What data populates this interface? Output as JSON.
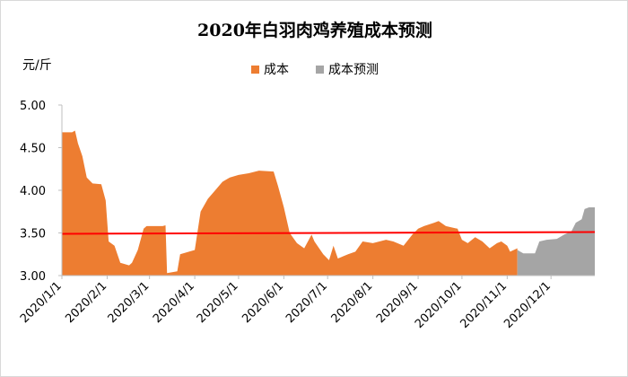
{
  "chart_data": {
    "type": "area",
    "title": "2020年白羽肉鸡养殖成本预测",
    "ylabel": "元/斤",
    "xlabel": "",
    "ylim": [
      3.0,
      5.0
    ],
    "yticks": [
      "3.00",
      "3.50",
      "4.00",
      "4.50",
      "5.00"
    ],
    "xticks": [
      "2020/1/1",
      "2020/2/1",
      "2020/3/1",
      "2020/4/1",
      "2020/5/1",
      "2020/6/1",
      "2020/7/1",
      "2020/8/1",
      "2020/9/1",
      "2020/10/1",
      "2020/11/1",
      "2020/12/1"
    ],
    "legend_position": "top-center",
    "grid": false,
    "reference_line": {
      "value": 3.5,
      "color": "#ff0000"
    },
    "series": [
      {
        "name": "成本",
        "color": "#ed7d31",
        "points": [
          [
            "2020/1/1",
            4.68
          ],
          [
            "2020/1/8",
            4.68
          ],
          [
            "2020/1/10",
            4.7
          ],
          [
            "2020/1/12",
            4.55
          ],
          [
            "2020/1/15",
            4.4
          ],
          [
            "2020/1/18",
            4.15
          ],
          [
            "2020/1/22",
            4.08
          ],
          [
            "2020/1/28",
            4.07
          ],
          [
            "2020/1/31",
            3.88
          ],
          [
            "2020/2/2",
            3.4
          ],
          [
            "2020/2/6",
            3.35
          ],
          [
            "2020/2/10",
            3.15
          ],
          [
            "2020/2/16",
            3.12
          ],
          [
            "2020/2/18",
            3.15
          ],
          [
            "2020/2/22",
            3.3
          ],
          [
            "2020/2/26",
            3.55
          ],
          [
            "2020/2/28",
            3.58
          ],
          [
            "2020/3/3",
            3.58
          ],
          [
            "2020/3/10",
            3.58
          ],
          [
            "2020/3/12",
            3.59
          ],
          [
            "2020/3/13",
            3.03
          ],
          [
            "2020/3/20",
            3.05
          ],
          [
            "2020/3/22",
            3.25
          ],
          [
            "2020/3/28",
            3.28
          ],
          [
            "2020/4/1",
            3.3
          ],
          [
            "2020/4/5",
            3.75
          ],
          [
            "2020/4/10",
            3.9
          ],
          [
            "2020/4/15",
            4.0
          ],
          [
            "2020/4/20",
            4.1
          ],
          [
            "2020/4/25",
            4.15
          ],
          [
            "2020/5/1",
            4.18
          ],
          [
            "2020/5/8",
            4.2
          ],
          [
            "2020/5/15",
            4.23
          ],
          [
            "2020/5/25",
            4.22
          ],
          [
            "2020/5/28",
            4.05
          ],
          [
            "2020/6/1",
            3.8
          ],
          [
            "2020/6/5",
            3.5
          ],
          [
            "2020/6/10",
            3.38
          ],
          [
            "2020/6/15",
            3.32
          ],
          [
            "2020/6/20",
            3.48
          ],
          [
            "2020/6/22",
            3.4
          ],
          [
            "2020/6/28",
            3.25
          ],
          [
            "2020/7/2",
            3.18
          ],
          [
            "2020/7/5",
            3.35
          ],
          [
            "2020/7/8",
            3.2
          ],
          [
            "2020/7/15",
            3.25
          ],
          [
            "2020/7/20",
            3.28
          ],
          [
            "2020/7/25",
            3.4
          ],
          [
            "2020/8/1",
            3.38
          ],
          [
            "2020/8/10",
            3.42
          ],
          [
            "2020/8/15",
            3.4
          ],
          [
            "2020/8/22",
            3.35
          ],
          [
            "2020/8/28",
            3.48
          ],
          [
            "2020/9/1",
            3.55
          ],
          [
            "2020/9/5",
            3.58
          ],
          [
            "2020/9/12",
            3.62
          ],
          [
            "2020/9/15",
            3.64
          ],
          [
            "2020/9/20",
            3.58
          ],
          [
            "2020/9/28",
            3.55
          ],
          [
            "2020/10/1",
            3.42
          ],
          [
            "2020/10/5",
            3.38
          ],
          [
            "2020/10/10",
            3.45
          ],
          [
            "2020/10/15",
            3.4
          ],
          [
            "2020/10/20",
            3.32
          ],
          [
            "2020/10/25",
            3.38
          ],
          [
            "2020/10/28",
            3.4
          ],
          [
            "2020/11/1",
            3.35
          ],
          [
            "2020/11/3",
            3.28
          ],
          [
            "2020/11/8",
            3.32
          ]
        ]
      },
      {
        "name": "成本预测",
        "color": "#a5a5a5",
        "points": [
          [
            "2020/11/8",
            3.3
          ],
          [
            "2020/11/12",
            3.26
          ],
          [
            "2020/11/20",
            3.26
          ],
          [
            "2020/11/23",
            3.4
          ],
          [
            "2020/11/28",
            3.42
          ],
          [
            "2020/12/5",
            3.43
          ],
          [
            "2020/12/10",
            3.48
          ],
          [
            "2020/12/15",
            3.52
          ],
          [
            "2020/12/18",
            3.62
          ],
          [
            "2020/12/22",
            3.66
          ],
          [
            "2020/12/24",
            3.78
          ],
          [
            "2020/12/27",
            3.8
          ],
          [
            "2020/12/31",
            3.8
          ]
        ]
      }
    ]
  }
}
